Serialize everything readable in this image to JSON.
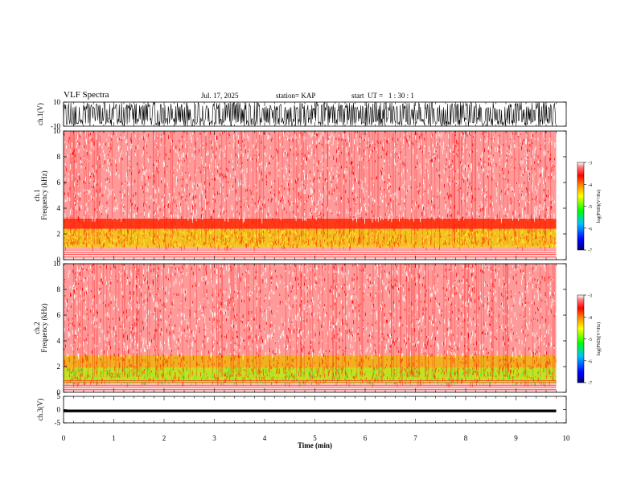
{
  "header": {
    "title": "VLF Spectra",
    "date": "Jul. 17, 2025",
    "station": "station= KAP",
    "start": "start  UT =   1 : 30 : 1"
  },
  "colors": {
    "colormap": [
      "#00008b",
      "#0000ff",
      "#00ff00",
      "#ffff00",
      "#ff8000",
      "#ff0000",
      "#ffffff"
    ],
    "trace": "#000000"
  },
  "chart_data": [
    {
      "type": "line",
      "id": "ch1-waveform",
      "ylabel": "ch.1(V)",
      "ylim": [
        -10,
        10
      ],
      "yticks": [
        "10",
        "-10"
      ],
      "xlim": [
        0,
        10
      ],
      "description_series": "dense noise signal spanning roughly -10 to 10 V across 0-9.8 min"
    },
    {
      "type": "heatmap",
      "id": "ch1-spectrogram",
      "ylabel": "ch.1\nFrequency (kHz)",
      "ylim": [
        0,
        10
      ],
      "yticks": [
        "0",
        "2",
        "4",
        "6",
        "8",
        "10"
      ],
      "xlim": [
        0,
        10
      ],
      "data_extent_min": 9.8,
      "bands_khz": [
        {
          "from": 0,
          "to": 1.0,
          "level": "white-red-lines"
        },
        {
          "from": 1.0,
          "to": 2.4,
          "level": "yellow"
        },
        {
          "from": 2.4,
          "to": 3.2,
          "level": "orange-red"
        },
        {
          "from": 3.2,
          "to": 10,
          "level": "red-white"
        }
      ],
      "colorbar": {
        "label": "log(PSD)(V²/Hz)",
        "range": [
          -7,
          -3
        ],
        "ticks": [
          "-3",
          "-4",
          "-5",
          "-6",
          "-7"
        ]
      }
    },
    {
      "type": "heatmap",
      "id": "ch2-spectrogram",
      "ylabel": "ch.2\nFrequency (kHz)",
      "ylim": [
        0,
        10
      ],
      "yticks": [
        "0",
        "2",
        "4",
        "6",
        "8",
        "10"
      ],
      "xlim": [
        0,
        10
      ],
      "data_extent_min": 9.8,
      "bands_khz": [
        {
          "from": 0,
          "to": 0.7,
          "level": "white-red-lines"
        },
        {
          "from": 0.7,
          "to": 1.9,
          "level": "green-yellow"
        },
        {
          "from": 1.9,
          "to": 2.9,
          "level": "yellow-orange"
        },
        {
          "from": 2.9,
          "to": 10,
          "level": "red-white"
        }
      ],
      "colorbar": {
        "label": "log(PSD)(V²/Hz)",
        "range": [
          -7,
          -3
        ],
        "ticks": [
          "-3",
          "-4",
          "-5",
          "-6",
          "-7"
        ]
      }
    },
    {
      "type": "line",
      "id": "ch3-waveform",
      "ylabel": "ch.3(V)",
      "ylim": [
        -5,
        5
      ],
      "yticks": [
        "5",
        "0",
        "-5"
      ],
      "xlim": [
        0,
        10
      ],
      "level_band": [
        -1,
        0
      ],
      "xlabel": "Time (min)",
      "xticks": [
        "0",
        "1",
        "2",
        "3",
        "4",
        "5",
        "6",
        "7",
        "8",
        "9",
        "10"
      ]
    }
  ]
}
